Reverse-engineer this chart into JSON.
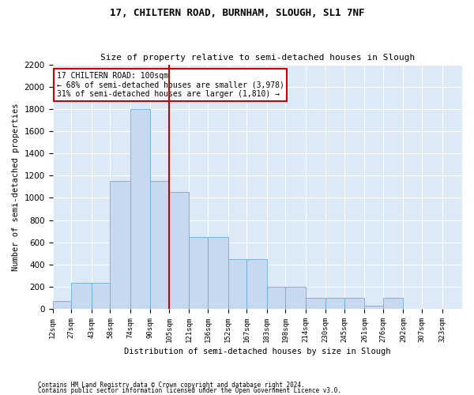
{
  "title1": "17, CHILTERN ROAD, BURNHAM, SLOUGH, SL1 7NF",
  "title2": "Size of property relative to semi-detached houses in Slough",
  "xlabel": "Distribution of semi-detached houses by size in Slough",
  "ylabel": "Number of semi-detached properties",
  "footnote1": "Contains HM Land Registry data © Crown copyright and database right 2024.",
  "footnote2": "Contains public sector information licensed under the Open Government Licence v3.0.",
  "annotation_line1": "17 CHILTERN ROAD: 100sqm",
  "annotation_line2": "← 68% of semi-detached houses are smaller (3,978)",
  "annotation_line3": "31% of semi-detached houses are larger (1,810) →",
  "property_line_x": 105,
  "bar_color": "#c6d9f0",
  "bar_edge_color": "#6baed6",
  "line_color": "#cc0000",
  "background_color": "#dce9f7",
  "bin_edges": [
    12,
    27,
    43,
    58,
    74,
    90,
    105,
    121,
    136,
    152,
    167,
    183,
    198,
    214,
    230,
    245,
    261,
    276,
    292,
    307,
    323
  ],
  "bin_labels": [
    "12sqm",
    "27sqm",
    "43sqm",
    "58sqm",
    "74sqm",
    "90sqm",
    "105sqm",
    "121sqm",
    "136sqm",
    "152sqm",
    "167sqm",
    "183sqm",
    "198sqm",
    "214sqm",
    "230sqm",
    "245sqm",
    "261sqm",
    "276sqm",
    "292sqm",
    "307sqm",
    "323sqm"
  ],
  "bar_heights": [
    75,
    235,
    235,
    1150,
    1800,
    1150,
    1050,
    650,
    650,
    450,
    450,
    200,
    200,
    100,
    100,
    100,
    30,
    100,
    0,
    0,
    0
  ],
  "ylim": [
    0,
    2200
  ],
  "yticks": [
    0,
    200,
    400,
    600,
    800,
    1000,
    1200,
    1400,
    1600,
    1800,
    2000,
    2200
  ],
  "annotation_box_color": "white",
  "annotation_box_edge": "#cc0000",
  "title1_fontsize": 9,
  "title2_fontsize": 8
}
